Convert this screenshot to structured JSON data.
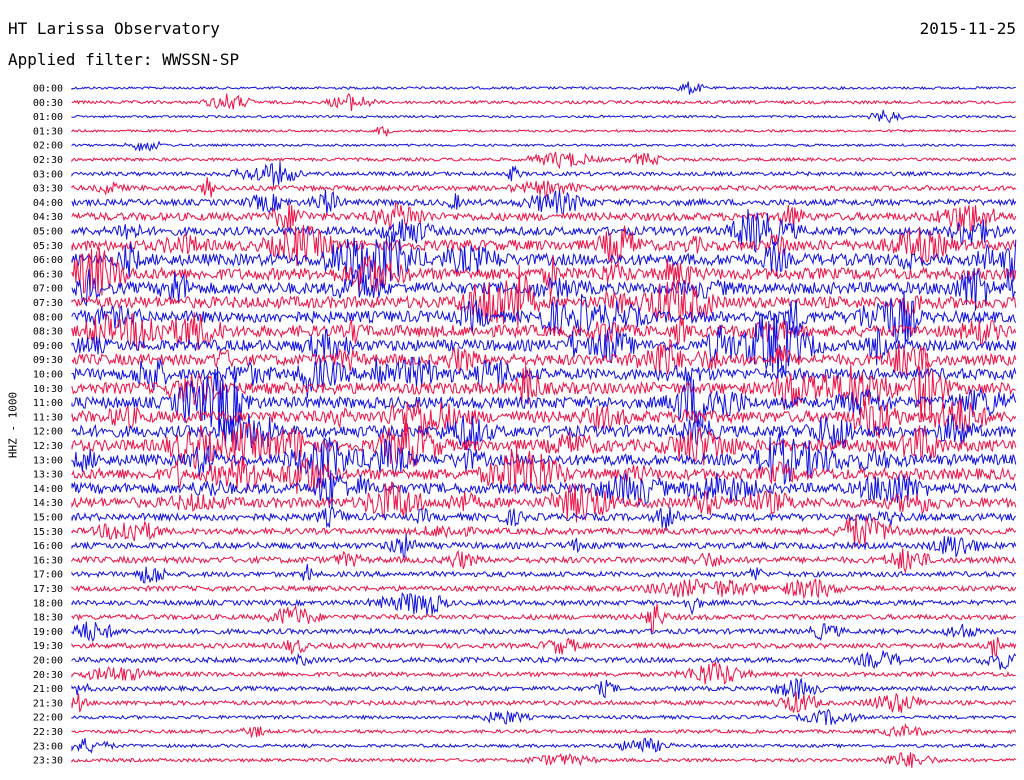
{
  "header": {
    "station": "HT Larissa Observatory",
    "date": "2015-11-25",
    "filter": "Applied filter: WWSSN-SP"
  },
  "colors": {
    "blue": "#1010e0",
    "red": "#ee1044"
  },
  "chart_data": {
    "type": "line",
    "ylabel": "HHZ - 1000",
    "ytick_labels": [
      "00:00",
      "00:30",
      "01:00",
      "01:30",
      "02:00",
      "02:30",
      "03:00",
      "03:30",
      "04:00",
      "04:30",
      "05:00",
      "05:30",
      "06:00",
      "06:30",
      "07:00",
      "07:30",
      "08:00",
      "08:30",
      "09:00",
      "09:30",
      "10:00",
      "10:30",
      "11:00",
      "11:30",
      "12:00",
      "12:30",
      "13:00",
      "13:30",
      "14:00",
      "14:30",
      "15:00",
      "15:30",
      "16:00",
      "16:30",
      "17:00",
      "17:30",
      "18:00",
      "18:30",
      "19:00",
      "19:30",
      "20:00",
      "20:30",
      "21:00",
      "21:30",
      "22:00",
      "22:30",
      "23:00",
      "23:30"
    ],
    "series_colors_alternating": [
      "blue",
      "red"
    ],
    "activity_level": [
      0.12,
      0.18,
      0.1,
      0.1,
      0.1,
      0.18,
      0.25,
      0.35,
      0.45,
      0.6,
      0.65,
      0.85,
      0.95,
      0.95,
      0.95,
      0.95,
      0.95,
      0.95,
      0.9,
      0.9,
      0.9,
      0.95,
      0.95,
      0.95,
      0.95,
      0.95,
      0.9,
      0.9,
      0.85,
      0.8,
      0.55,
      0.45,
      0.45,
      0.45,
      0.35,
      0.35,
      0.35,
      0.35,
      0.35,
      0.35,
      0.35,
      0.3,
      0.3,
      0.3,
      0.2,
      0.2,
      0.18,
      0.2
    ],
    "notes": "24-hour helicorder, one trace per 30 minutes, alternating colors"
  }
}
